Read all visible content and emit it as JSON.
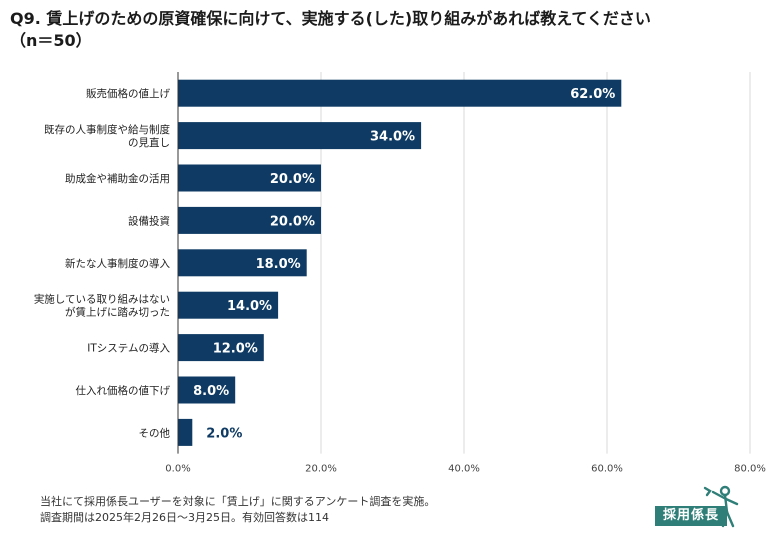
{
  "title": {
    "line1": "Q9. 賃上げのための原資確保に向けて、実施する(した)取り組みがあれば教えてください",
    "line2": "（n＝50）"
  },
  "chart_data": {
    "type": "bar",
    "orientation": "horizontal",
    "categories": [
      "販売価格の値上げ",
      "既存の人事制度や給与制度\nの見直し",
      "助成金や補助金の活用",
      "設備投資",
      "新たな人事制度の導入",
      "実施している取り組みはない\nが賃上げに踏み切った",
      "ITシステムの導入",
      "仕入れ価格の値下げ",
      "その他"
    ],
    "values": [
      62.0,
      34.0,
      20.0,
      20.0,
      18.0,
      14.0,
      12.0,
      8.0,
      2.0
    ],
    "value_labels": [
      "62.0%",
      "34.0%",
      "20.0%",
      "20.0%",
      "18.0%",
      "14.0%",
      "12.0%",
      "8.0%",
      "2.0%"
    ],
    "xlim": [
      0,
      80
    ],
    "xticks": [
      "0.0%",
      "20.0%",
      "40.0%",
      "60.0%",
      "80.0%"
    ],
    "grid": true,
    "bar_color": "#0e3a63"
  },
  "footer": {
    "line1": "当社にて採用係長ユーザーを対象に「賃上げ」に関するアンケート調査を実施。",
    "line2": "調査期間は2025年2月26日〜3月25日。有効回答数は114"
  },
  "logo": {
    "text": "採用係長"
  },
  "colors": {
    "bar": "#0e3a63",
    "grid": "#d9d9d9",
    "axis": "#333333",
    "logo": "#2f7f78"
  }
}
